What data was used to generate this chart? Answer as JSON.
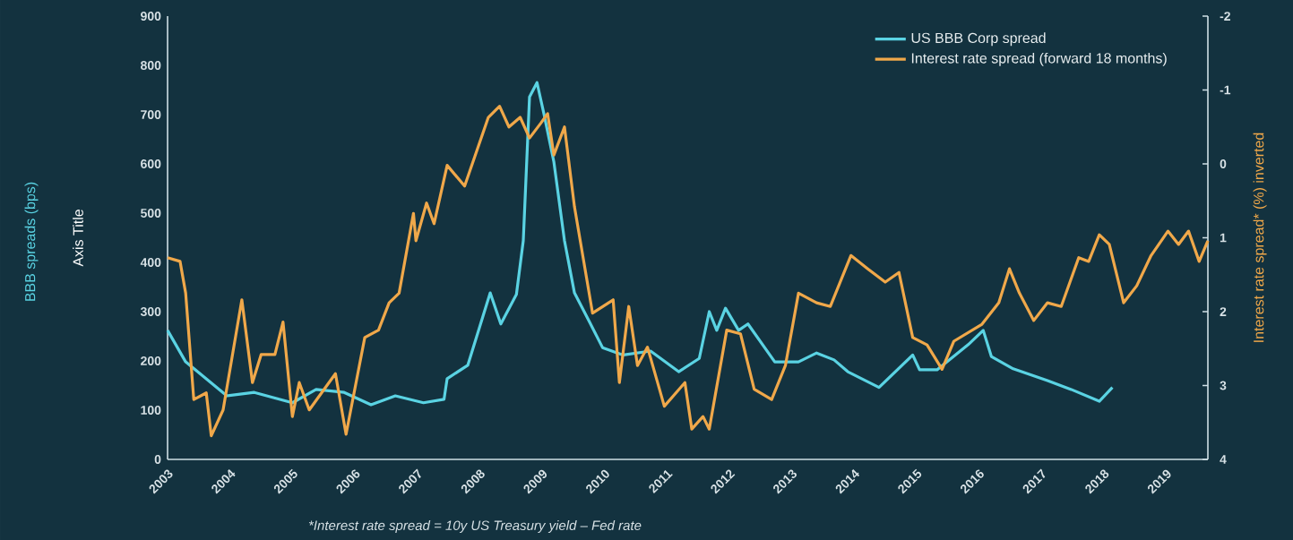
{
  "chart_data": {
    "type": "line",
    "ylabel": "Axis Title",
    "y2label": "Interest rate spread* (%) inverted",
    "annotations": [
      "BBB spreads (bps)",
      "*Interest rate spread = 10y US Treasury yield – Fed rate"
    ],
    "xlim": [
      2003,
      2019.67
    ],
    "xticks": [
      2003,
      2004,
      2005,
      2006,
      2007,
      2008,
      2009,
      2010,
      2011,
      2012,
      2013,
      2014,
      2015,
      2016,
      2017,
      2018,
      2019
    ],
    "ylim": [
      0,
      900
    ],
    "yticks": [
      0,
      100,
      200,
      300,
      400,
      500,
      600,
      700,
      800,
      900
    ],
    "y2lim": [
      4,
      -2
    ],
    "y2ticks": [
      -2,
      -1,
      0,
      1,
      2,
      3,
      4
    ],
    "legend": "top right",
    "marker": "none",
    "series": [
      {
        "name": "US BBB Corp spread",
        "color": "#5ad3e3",
        "x": [
          2003.0,
          2003.29,
          2003.95,
          2004.39,
          2005.0,
          2005.38,
          2005.83,
          2006.26,
          2006.65,
          2007.1,
          2007.43,
          2007.48,
          2007.81,
          2008.17,
          2008.34,
          2008.59,
          2008.7,
          2008.8,
          2008.92,
          2009.03,
          2009.19,
          2009.36,
          2009.52,
          2009.75,
          2009.97,
          2010.3,
          2010.74,
          2011.19,
          2011.52,
          2011.68,
          2011.8,
          2011.94,
          2012.15,
          2012.3,
          2012.73,
          2013.11,
          2013.4,
          2013.68,
          2013.9,
          2014.4,
          2014.94,
          2015.05,
          2015.33,
          2015.83,
          2016.07,
          2016.2,
          2016.55,
          2017.1,
          2017.48,
          2017.93,
          2018.14
        ],
        "values": [
          262,
          198,
          129,
          136,
          115,
          142,
          136,
          111,
          129,
          115,
          122,
          164,
          191,
          338,
          275,
          335,
          444,
          736,
          765,
          702,
          604,
          444,
          338,
          282,
          227,
          212,
          220,
          178,
          205,
          300,
          262,
          307,
          262,
          275,
          198,
          198,
          216,
          202,
          178,
          146,
          212,
          182,
          182,
          233,
          262,
          209,
          184,
          160,
          142,
          118,
          146
        ]
      },
      {
        "name": "Interest rate spread (forward 18 months)",
        "color": "#f0a84a",
        "axis": "y2",
        "x": [
          2003.0,
          2003.2,
          2003.29,
          2003.42,
          2003.62,
          2003.7,
          2003.89,
          2004.19,
          2004.36,
          2004.5,
          2004.72,
          2004.85,
          2005.0,
          2005.11,
          2005.27,
          2005.69,
          2005.86,
          2006.16,
          2006.38,
          2006.55,
          2006.71,
          2006.94,
          2006.98,
          2007.15,
          2007.27,
          2007.48,
          2007.76,
          2008.14,
          2008.32,
          2008.47,
          2008.65,
          2008.8,
          2008.98,
          2009.09,
          2009.19,
          2009.36,
          2009.52,
          2009.81,
          2010.14,
          2010.24,
          2010.39,
          2010.53,
          2010.69,
          2010.96,
          2011.29,
          2011.4,
          2011.58,
          2011.68,
          2011.96,
          2012.18,
          2012.4,
          2012.68,
          2012.9,
          2013.11,
          2013.4,
          2013.62,
          2013.95,
          2014.22,
          2014.5,
          2014.72,
          2014.94,
          2015.17,
          2015.41,
          2015.6,
          2016.05,
          2016.32,
          2016.49,
          2016.65,
          2016.88,
          2017.1,
          2017.32,
          2017.6,
          2017.76,
          2017.93,
          2018.09,
          2018.32,
          2018.53,
          2018.76,
          2019.03,
          2019.2,
          2019.36,
          2019.53,
          2019.67
        ],
        "values": [
          1.27,
          1.32,
          1.75,
          3.19,
          3.1,
          3.68,
          3.33,
          1.84,
          2.96,
          2.58,
          2.58,
          2.14,
          3.42,
          2.96,
          3.33,
          2.84,
          3.66,
          2.35,
          2.25,
          1.88,
          1.75,
          0.67,
          1.04,
          0.53,
          0.81,
          0.02,
          0.3,
          -0.63,
          -0.78,
          -0.5,
          -0.63,
          -0.35,
          -0.55,
          -0.68,
          -0.12,
          -0.5,
          0.58,
          2.02,
          1.84,
          2.96,
          1.93,
          2.73,
          2.48,
          3.28,
          2.96,
          3.59,
          3.42,
          3.59,
          2.25,
          2.3,
          3.05,
          3.19,
          2.73,
          1.75,
          1.88,
          1.93,
          1.24,
          1.42,
          1.6,
          1.47,
          2.35,
          2.45,
          2.78,
          2.4,
          2.17,
          1.88,
          1.42,
          1.75,
          2.12,
          1.88,
          1.93,
          1.27,
          1.32,
          0.96,
          1.09,
          1.88,
          1.65,
          1.24,
          0.91,
          1.09,
          0.91,
          1.32,
          1.04
        ]
      }
    ]
  }
}
